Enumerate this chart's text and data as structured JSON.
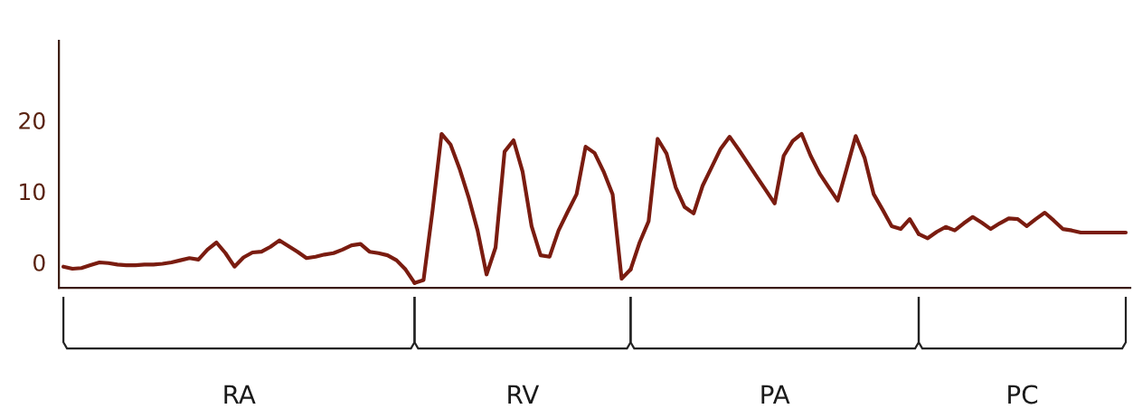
{
  "chart_data": {
    "type": "line",
    "ylim": [
      -3.6,
      31.2
    ],
    "yticks": [
      0,
      10,
      20
    ],
    "tick_labels": "y",
    "legend": false,
    "marker": "none",
    "line_style": "solid",
    "categories": [
      null,
      null,
      null,
      null,
      null,
      null,
      null,
      null,
      null,
      null,
      null,
      null,
      null,
      null,
      null,
      null,
      null,
      null,
      null,
      null,
      null,
      null,
      null,
      null,
      null,
      null,
      null,
      null,
      null,
      null,
      null,
      null,
      null,
      null,
      null,
      null,
      null,
      null,
      null,
      null,
      null,
      null,
      null,
      null,
      null,
      null,
      null,
      null,
      null,
      null,
      null,
      null,
      null,
      null,
      null,
      null,
      null,
      null,
      null,
      null,
      null,
      null,
      null,
      null,
      null,
      null,
      null,
      null,
      null,
      null,
      null,
      null,
      null,
      null,
      null,
      null,
      null,
      null,
      null,
      null,
      null,
      null,
      null,
      null,
      null,
      null,
      null,
      null,
      null,
      null,
      null,
      null,
      null,
      null,
      null,
      null,
      null,
      null,
      null,
      null,
      null,
      null,
      null,
      null,
      null,
      null,
      null,
      null,
      null,
      null,
      null,
      null,
      null,
      null,
      null,
      null,
      null,
      null,
      null
    ],
    "annotations": [
      "RA",
      "RV",
      "PA",
      "PC"
    ],
    "series": [
      {
        "color": "#7a1c10",
        "values": [
          -0.6,
          -0.9,
          -0.8,
          -0.4,
          0,
          -0.1,
          -0.3,
          -0.4,
          -0.4,
          -0.3,
          -0.3,
          -0.2,
          0,
          0.3,
          0.6,
          0.4,
          1.8,
          2.8,
          1.3,
          -0.6,
          0.7,
          1.4,
          1.5,
          2.2,
          3.1,
          2.3,
          1.5,
          0.6,
          0.8,
          1.1,
          1.3,
          1.8,
          2.4,
          2.6,
          1.5,
          1.3,
          1.0,
          0.3,
          -1.0,
          -2.9,
          null,
          null,
          null,
          null,
          null,
          null,
          null,
          null,
          null,
          null,
          null,
          null,
          null,
          null,
          null,
          null,
          null,
          null,
          null,
          null,
          null,
          null,
          null,
          null,
          null,
          null,
          null,
          null,
          null,
          null,
          null,
          null,
          null,
          null,
          null,
          null,
          null,
          null,
          null,
          null,
          null,
          null,
          null,
          null,
          null,
          null,
          null,
          null,
          null,
          null,
          null,
          null,
          null,
          null,
          null,
          null,
          null,
          null,
          null,
          null,
          null,
          null,
          null,
          null,
          null,
          null,
          null,
          null,
          null,
          null,
          null,
          null,
          null,
          null,
          null,
          null,
          null,
          null,
          null
        ]
      },
      {
        "color": "#7a1c10",
        "values": [
          null,
          null,
          null,
          null,
          null,
          null,
          null,
          null,
          null,
          null,
          null,
          null,
          null,
          null,
          null,
          null,
          null,
          null,
          null,
          null,
          null,
          null,
          null,
          null,
          null,
          null,
          null,
          null,
          null,
          null,
          null,
          null,
          null,
          null,
          null,
          null,
          null,
          null,
          null,
          -2.9,
          -2.5,
          7.3,
          18.1,
          16.6,
          13.2,
          9.2,
          4.5,
          -1.7,
          2.1,
          15.6,
          17.2,
          12.8,
          5.1,
          1.0,
          0.8,
          4.5,
          7.1,
          9.6,
          16.3,
          15.4,
          12.8,
          9.6,
          -2.3,
          -1.0,
          null,
          null,
          null,
          null,
          null,
          null,
          null,
          null,
          null,
          null,
          null,
          null,
          null,
          null,
          null,
          null,
          null,
          null,
          null,
          null,
          null,
          null,
          null,
          null,
          null,
          null,
          null,
          null,
          null,
          null,
          null,
          null,
          null,
          null,
          null,
          null,
          null,
          null,
          null,
          null,
          null,
          null,
          null,
          null,
          null,
          null,
          null,
          null,
          null,
          null,
          null,
          null,
          null,
          null,
          null
        ]
      },
      {
        "color": "#7a1c10",
        "values": [
          null,
          null,
          null,
          null,
          null,
          null,
          null,
          null,
          null,
          null,
          null,
          null,
          null,
          null,
          null,
          null,
          null,
          null,
          null,
          null,
          null,
          null,
          null,
          null,
          null,
          null,
          null,
          null,
          null,
          null,
          null,
          null,
          null,
          null,
          null,
          null,
          null,
          null,
          null,
          null,
          null,
          null,
          null,
          null,
          null,
          null,
          null,
          null,
          null,
          null,
          null,
          null,
          null,
          null,
          null,
          null,
          null,
          null,
          null,
          null,
          null,
          null,
          null,
          -1.0,
          2.8,
          5.8,
          17.4,
          15.3,
          10.6,
          7.8,
          6.9,
          10.8,
          13.4,
          16.0,
          17.7,
          15.9,
          14.0,
          12.1,
          10.2,
          8.3,
          15.0,
          17.1,
          18.1,
          15.0,
          12.5,
          10.6,
          8.7,
          13.2,
          17.8,
          14.7,
          9.6,
          7.4,
          5.1,
          4.7,
          6.1,
          4.0,
          null,
          null,
          null,
          null,
          null,
          null,
          null,
          null,
          null,
          null,
          null,
          null,
          null,
          null,
          null,
          null,
          null,
          null,
          null,
          null,
          null,
          null,
          null
        ]
      },
      {
        "color": "#7a1c10",
        "values": [
          null,
          null,
          null,
          null,
          null,
          null,
          null,
          null,
          null,
          null,
          null,
          null,
          null,
          null,
          null,
          null,
          null,
          null,
          null,
          null,
          null,
          null,
          null,
          null,
          null,
          null,
          null,
          null,
          null,
          null,
          null,
          null,
          null,
          null,
          null,
          null,
          null,
          null,
          null,
          null,
          null,
          null,
          null,
          null,
          null,
          null,
          null,
          null,
          null,
          null,
          null,
          null,
          null,
          null,
          null,
          null,
          null,
          null,
          null,
          null,
          null,
          null,
          null,
          null,
          null,
          null,
          null,
          null,
          null,
          null,
          null,
          null,
          null,
          null,
          null,
          null,
          null,
          null,
          null,
          null,
          null,
          null,
          null,
          null,
          null,
          null,
          null,
          null,
          null,
          null,
          null,
          null,
          null,
          null,
          null,
          4.0,
          3.4,
          4.3,
          5.0,
          4.5,
          5.5,
          6.4,
          5.6,
          4.7,
          5.5,
          6.2,
          6.1,
          5.1,
          6.1,
          7.0,
          5.9,
          4.7,
          4.5,
          4.2,
          4.2,
          4.2,
          4.2,
          4.2,
          4.2
        ]
      }
    ]
  }
}
